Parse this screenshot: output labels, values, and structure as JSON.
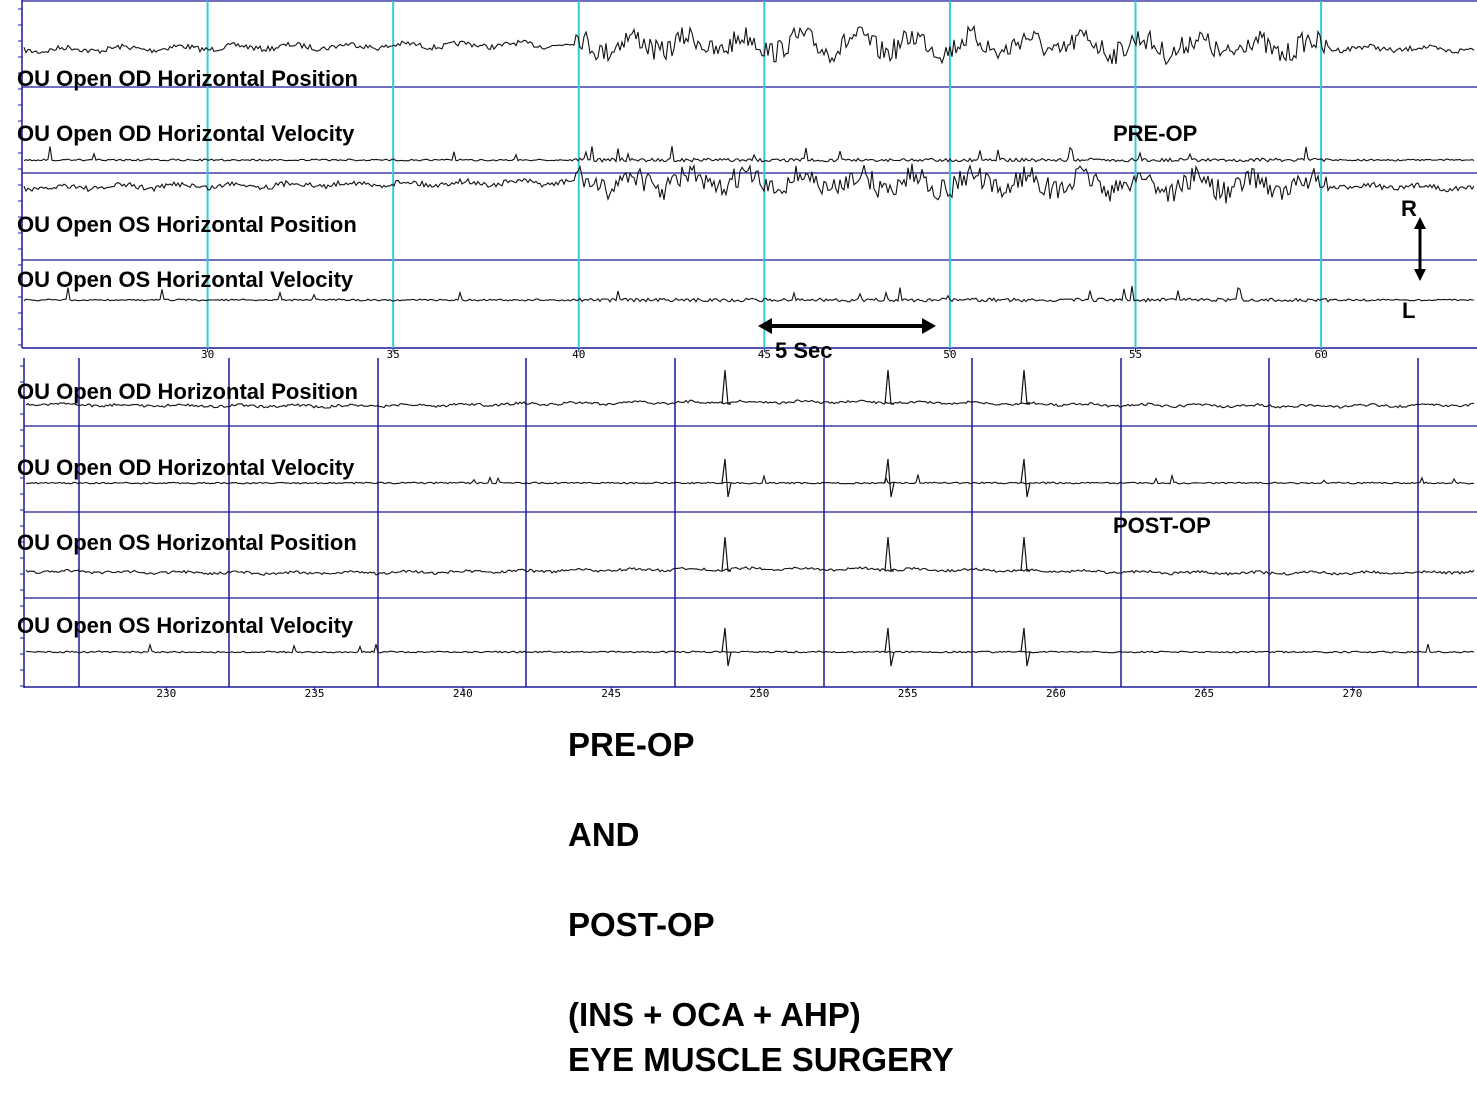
{
  "chart_data": [
    {
      "type": "line",
      "phase_label": "PRE-OP",
      "x_ticks": [
        30,
        35,
        40,
        45,
        50,
        55,
        60
      ],
      "x_range": [
        25,
        64.2
      ],
      "grid": true,
      "grid_color": "#33ccdd",
      "series": [
        {
          "name": "OU Open OD Horizontal Position",
          "kind": "position"
        },
        {
          "name": "OU Open OD Horizontal  Velocity",
          "kind": "velocity"
        },
        {
          "name": "OU Open OS Horizontal Position",
          "kind": "position"
        },
        {
          "name": "OU Open OS Horizontal Velocity",
          "kind": "velocity"
        }
      ],
      "annotations": {
        "time_scale": "5 Sec",
        "time_scale_span": [
          45,
          50
        ],
        "direction_top": "R",
        "direction_bottom": "L"
      }
    },
    {
      "type": "line",
      "phase_label": "POST-OP",
      "x_ticks": [
        230,
        235,
        240,
        245,
        250,
        255,
        260,
        265,
        270
      ],
      "x_range": [
        225.2,
        274.2
      ],
      "grid": true,
      "grid_color": "#1a1a99",
      "series": [
        {
          "name": "OU Open OD Horizontal Position",
          "kind": "position"
        },
        {
          "name": "OU Open OD Horizontal  Velocity",
          "kind": "velocity"
        },
        {
          "name": "OU Open OS Horizontal Position",
          "kind": "position"
        },
        {
          "name": "OU Open OS Horizontal Velocity",
          "kind": "velocity"
        }
      ]
    }
  ],
  "caption": {
    "line1": "PRE-OP",
    "line2": "AND",
    "line3": "POST-OP",
    "line4": "(INS + OCA + AHP)",
    "line5": "EYE MUSCLE SURGERY"
  }
}
